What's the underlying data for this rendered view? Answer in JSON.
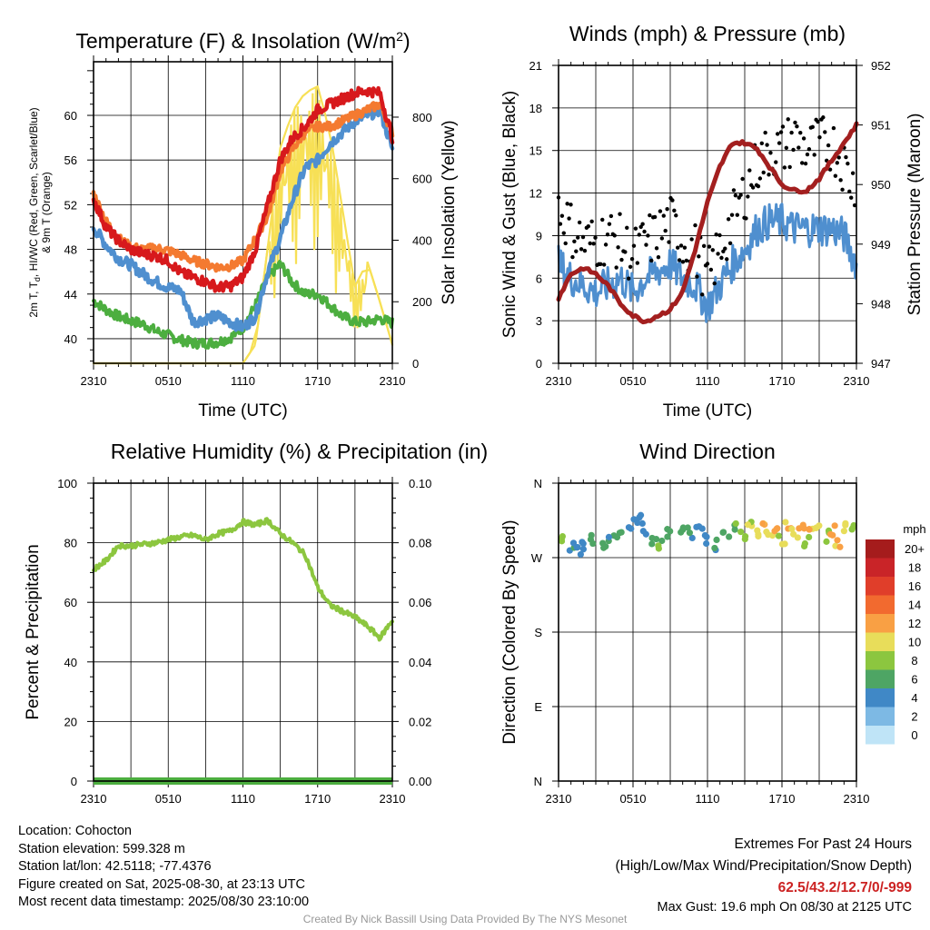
{
  "x_tick_labels": [
    "2310",
    "0510",
    "1110",
    "1710",
    "2310"
  ],
  "chart_data": [
    {
      "type": "line",
      "title": "Temperature (F) & Insolation (W/m2)",
      "title_main": "Temperature (F) & Insolation (W/m",
      "title_sup": "2",
      "title_close": ")",
      "xlabel": "Time (UTC)",
      "ylabel_line1": "2m T, T",
      "ylabel_sub": "d",
      "ylabel_line1b": ", HI/WC (Red, Green, Scarlet/Blue)",
      "ylabel_line2": "& 9m T (Orange)",
      "y2label": "Solar Insolation (Yellow)",
      "x": [
        0,
        1,
        2,
        3,
        4,
        5,
        6,
        7,
        8,
        9,
        10,
        11,
        12,
        13,
        14,
        15,
        16,
        17,
        18,
        19,
        20,
        21,
        22,
        23,
        24
      ],
      "ylim": [
        37.8,
        64.8
      ],
      "y2lim": [
        0,
        980
      ],
      "yticks": [
        40,
        44,
        48,
        52,
        56,
        60
      ],
      "y2ticks": [
        0,
        200,
        400,
        600,
        800
      ],
      "series": [
        {
          "color": "#4f8fcf",
          "values": [
            50,
            48.4,
            47.2,
            46.6,
            45.8,
            45.1,
            44.6,
            44.3,
            41.5,
            41.8,
            42,
            41.5,
            41,
            42,
            46,
            49,
            52.5,
            55.3,
            56,
            57.5,
            58.5,
            59.5,
            60,
            60.5,
            57
          ]
        },
        {
          "color": "#4cae3f",
          "values": [
            43.4,
            42.6,
            42,
            41.6,
            41.3,
            40.7,
            40.3,
            39.9,
            39.6,
            39.6,
            39.7,
            40.1,
            41,
            43,
            45.5,
            46.7,
            45,
            44,
            44,
            43,
            42,
            41.5,
            41.5,
            41.8,
            41.4
          ]
        },
        {
          "color": "#f47a30",
          "values": [
            53,
            50.5,
            49,
            48.2,
            48,
            48.1,
            47.9,
            47.5,
            47,
            46.7,
            46.4,
            46.5,
            47,
            49,
            51,
            55,
            57,
            58.5,
            59,
            59,
            59.5,
            60,
            60.5,
            61,
            58.5
          ]
        },
        {
          "color": "#d7191c",
          "values": [
            52.5,
            50,
            48.8,
            48,
            47.6,
            47.4,
            47,
            45.9,
            45.5,
            45.1,
            44.6,
            44.7,
            45.5,
            48,
            52,
            56,
            58,
            59,
            60.5,
            61,
            61.5,
            62,
            62.2,
            62,
            58
          ]
        },
        {
          "color": "#f7e056",
          "values": [
            0,
            0,
            0,
            0,
            0,
            0,
            0,
            0,
            0,
            0,
            0,
            0,
            0,
            60,
            380,
            700,
            820,
            880,
            900,
            750,
            500,
            250,
            330,
            200,
            60
          ]
        }
      ]
    },
    {
      "type": "line",
      "title": "Winds (mph) & Pressure (mb)",
      "xlabel": "Time (UTC)",
      "ylabel": "Sonic Wind & Gust (Blue, Black)",
      "y2label": "Station Pressure (Maroon)",
      "x": [
        0,
        1,
        2,
        3,
        4,
        5,
        6,
        7,
        8,
        9,
        10,
        11,
        12,
        13,
        14,
        15,
        16,
        17,
        18,
        19,
        20,
        21,
        22,
        23,
        24
      ],
      "ylim": [
        0,
        21
      ],
      "y2lim": [
        947,
        952
      ],
      "yticks": [
        0,
        3,
        6,
        9,
        12,
        15,
        18,
        21
      ],
      "y2ticks": [
        947,
        948,
        949,
        950,
        951,
        952
      ],
      "series": [
        {
          "name": "wind",
          "color": "#4f8fcf",
          "values": [
            7,
            6,
            5.5,
            5,
            5.5,
            6,
            5,
            6,
            6.5,
            7,
            6,
            5.5,
            4,
            5.5,
            7,
            8,
            9.5,
            10,
            10,
            9.5,
            9.5,
            9.5,
            9.5,
            9,
            7
          ]
        },
        {
          "name": "gust",
          "color": "#000000",
          "values": [
            11,
            9.5,
            8.5,
            8.5,
            9,
            8.5,
            7.5,
            8.5,
            9,
            10,
            8.5,
            8,
            6,
            8,
            10,
            12,
            14,
            15,
            15,
            16,
            15,
            15.5,
            15.5,
            14,
            12
          ]
        },
        {
          "name": "pressure",
          "color": "#a31f1f",
          "values": [
            948.1,
            948.5,
            948.6,
            948.5,
            948.3,
            948,
            947.8,
            947.7,
            947.8,
            947.9,
            948.2,
            948.9,
            949.7,
            950.3,
            950.7,
            950.7,
            950.6,
            950.3,
            950,
            949.9,
            949.9,
            950.1,
            950.4,
            950.7,
            951
          ]
        }
      ]
    },
    {
      "type": "line",
      "title": "Relative Humidity (%) & Precipitation (in)",
      "ylabel": "Percent & Precipitation",
      "x": [
        0,
        1,
        2,
        3,
        4,
        5,
        6,
        7,
        8,
        9,
        10,
        11,
        12,
        13,
        14,
        15,
        16,
        17,
        18,
        19,
        20,
        21,
        22,
        23,
        24
      ],
      "ylim": [
        0,
        100
      ],
      "y2lim": [
        0,
        0.1
      ],
      "yticks": [
        0,
        20,
        40,
        60,
        80,
        100
      ],
      "y2ticks": [
        "0.00",
        "0.02",
        "0.04",
        "0.06",
        "0.08",
        "0.10"
      ],
      "series": [
        {
          "name": "rh",
          "color": "#8cc63f",
          "values": [
            71,
            74,
            79,
            79,
            79.5,
            80,
            81,
            82,
            82.5,
            81,
            83,
            84,
            87,
            86,
            87.5,
            83,
            80,
            76,
            65,
            59,
            57,
            55,
            52,
            48,
            54
          ]
        },
        {
          "name": "precip",
          "color": "#4cae3f",
          "values": [
            0,
            0,
            0,
            0,
            0,
            0,
            0,
            0,
            0,
            0,
            0,
            0,
            0,
            0,
            0,
            0,
            0,
            0,
            0,
            0,
            0,
            0,
            0,
            0,
            0
          ]
        }
      ]
    },
    {
      "type": "scatter",
      "title": "Wind Direction",
      "ylabel": "Direction (Colored By Speed)",
      "yticks": [
        "N",
        "E",
        "S",
        "W",
        "N"
      ],
      "legend_unit": "mph",
      "legend_labels": [
        "20+",
        "18",
        "16",
        "14",
        "12",
        "10",
        "8",
        "6",
        "4",
        "2",
        "0"
      ],
      "legend_colors": [
        "#a51c1c",
        "#c92428",
        "#e03e2a",
        "#f26a2f",
        "#f9a044",
        "#e8dd5a",
        "#8cc63f",
        "#4ea564",
        "#4088c6",
        "#7db9e4",
        "#bfe4f7"
      ],
      "x": [
        0.2,
        1,
        1.5,
        2,
        2.8,
        3.5,
        4.2,
        5,
        5.8,
        6.5,
        7,
        7.6,
        8.3,
        9,
        9.8,
        10.6,
        11.3,
        12,
        12.8,
        13.5,
        14.2,
        14.8,
        15.5,
        16,
        16.5,
        17,
        17.5,
        18,
        18.5,
        19,
        19.5,
        20,
        20.5,
        21,
        21.5,
        22,
        22.5,
        23,
        23.6
      ],
      "direction": [
        295,
        285,
        280,
        283,
        292,
        288,
        290,
        300,
        312,
        318,
        305,
        287,
        286,
        298,
        305,
        300,
        310,
        292,
        286,
        298,
        305,
        297,
        308,
        302,
        315,
        296,
        302,
        292,
        310,
        298,
        305,
        290,
        300,
        312,
        296,
        302,
        289,
        305,
        310
      ],
      "speed": [
        7,
        5,
        4,
        5,
        6,
        6,
        5,
        5,
        4,
        4,
        5,
        6,
        7,
        6,
        6,
        5,
        4,
        4,
        5,
        6,
        7,
        8,
        9,
        10,
        11,
        10,
        12,
        9,
        11,
        10,
        12,
        8,
        11,
        10,
        9,
        12,
        11,
        10,
        7
      ]
    }
  ],
  "info_left": [
    "Location: Cohocton",
    "Station elevation: 599.328 m",
    "Station lat/lon: 42.5118; -77.4376",
    "Figure created on Sat, 2025-08-30, at 23:13 UTC",
    "Most recent data timestamp: 2025/08/30 23:10:00"
  ],
  "extremes": {
    "title": "Extremes For Past 24 Hours",
    "subtitle": "(High/Low/Max Wind/Precipitation/Snow Depth)",
    "values": "62.5/43.2/12.7/0/-999",
    "max_gust": "Max Gust: 19.6 mph On 08/30 at 2125 UTC"
  },
  "credit": "Created By Nick Bassill Using Data Provided By The NYS Mesonet"
}
